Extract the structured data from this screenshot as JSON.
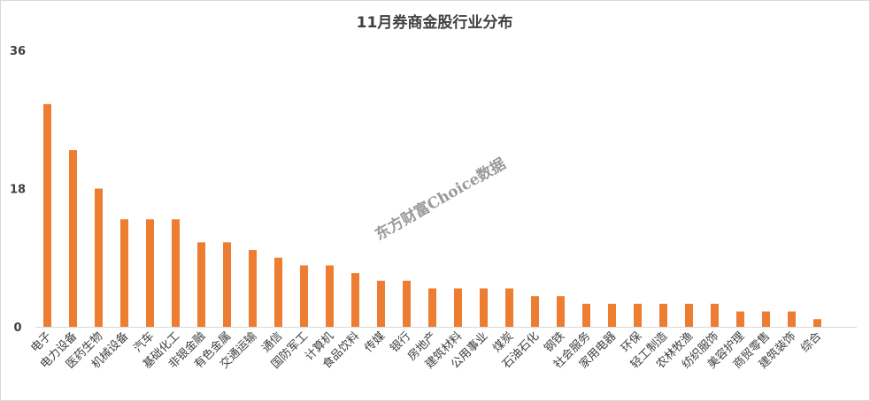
{
  "chart_data": {
    "type": "bar",
    "title": "11月券商金股行业分布",
    "categories": [
      "电子",
      "电力设备",
      "医药生物",
      "机械设备",
      "汽车",
      "基础化工",
      "非银金融",
      "有色金属",
      "交通运输",
      "通信",
      "国防军工",
      "计算机",
      "食品饮料",
      "传媒",
      "银行",
      "房地产",
      "建筑材料",
      "公用事业",
      "煤炭",
      "石油石化",
      "钢铁",
      "社会服务",
      "家用电器",
      "环保",
      "轻工制造",
      "农林牧渔",
      "纺织服饰",
      "美容护理",
      "商贸零售",
      "建筑装饰",
      "综合"
    ],
    "values": [
      29,
      23,
      18,
      14,
      14,
      14,
      11,
      11,
      10,
      9,
      8,
      8,
      7,
      6,
      6,
      5,
      5,
      5,
      5,
      4,
      4,
      3,
      3,
      3,
      3,
      3,
      3,
      2,
      2,
      2,
      1
    ],
    "yticks": [
      0,
      18,
      36
    ],
    "ylim": [
      0,
      36
    ],
    "xlabel": "",
    "ylabel": "",
    "grid": false,
    "legend": "none",
    "bar_color": "#ed7d31",
    "watermark": "东方财富Choice数据"
  }
}
